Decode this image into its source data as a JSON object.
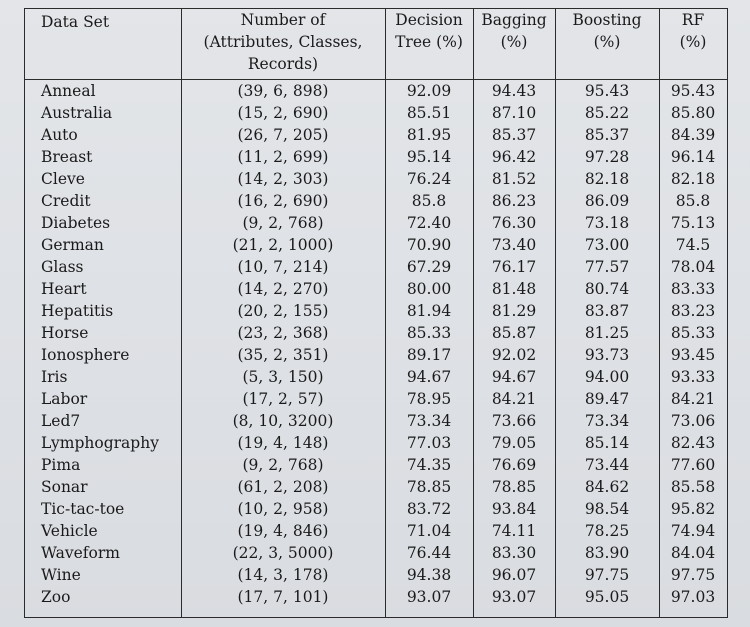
{
  "headers": {
    "dataset": "Data Set",
    "attributes_line1": "Number of",
    "attributes_line2": "(Attributes, Classes,",
    "attributes_line3": "Records)",
    "dt_line1": "Decision",
    "dt_line2": "Tree (%)",
    "bag_line1": "Bagging",
    "bag_line2": "(%)",
    "boost_line1": "Boosting",
    "boost_line2": "(%)",
    "rf_line1": "RF",
    "rf_line2": "(%)"
  },
  "rows": [
    {
      "name": "Anneal",
      "attr": "(39, 6, 898)",
      "dt": "92.09",
      "bag": "94.43",
      "boost": "95.43",
      "rf": "95.43"
    },
    {
      "name": "Australia",
      "attr": "(15, 2, 690)",
      "dt": "85.51",
      "bag": "87.10",
      "boost": "85.22",
      "rf": "85.80"
    },
    {
      "name": "Auto",
      "attr": "(26, 7, 205)",
      "dt": "81.95",
      "bag": "85.37",
      "boost": "85.37",
      "rf": "84.39"
    },
    {
      "name": "Breast",
      "attr": "(11, 2, 699)",
      "dt": "95.14",
      "bag": "96.42",
      "boost": "97.28",
      "rf": "96.14"
    },
    {
      "name": "Cleve",
      "attr": "(14, 2, 303)",
      "dt": "76.24",
      "bag": "81.52",
      "boost": "82.18",
      "rf": "82.18"
    },
    {
      "name": "Credit",
      "attr": "(16, 2, 690)",
      "dt": "85.8",
      "bag": "86.23",
      "boost": "86.09",
      "rf": "85.8"
    },
    {
      "name": "Diabetes",
      "attr": "(9, 2, 768)",
      "dt": "72.40",
      "bag": "76.30",
      "boost": "73.18",
      "rf": "75.13"
    },
    {
      "name": "German",
      "attr": "(21, 2, 1000)",
      "dt": "70.90",
      "bag": "73.40",
      "boost": "73.00",
      "rf": "74.5"
    },
    {
      "name": "Glass",
      "attr": "(10, 7, 214)",
      "dt": "67.29",
      "bag": "76.17",
      "boost": "77.57",
      "rf": "78.04"
    },
    {
      "name": "Heart",
      "attr": "(14, 2, 270)",
      "dt": "80.00",
      "bag": "81.48",
      "boost": "80.74",
      "rf": "83.33"
    },
    {
      "name": "Hepatitis",
      "attr": "(20, 2, 155)",
      "dt": "81.94",
      "bag": "81.29",
      "boost": "83.87",
      "rf": "83.23"
    },
    {
      "name": "Horse",
      "attr": "(23, 2, 368)",
      "dt": "85.33",
      "bag": "85.87",
      "boost": "81.25",
      "rf": "85.33"
    },
    {
      "name": "Ionosphere",
      "attr": "(35, 2, 351)",
      "dt": "89.17",
      "bag": "92.02",
      "boost": "93.73",
      "rf": "93.45"
    },
    {
      "name": "Iris",
      "attr": "(5, 3, 150)",
      "dt": "94.67",
      "bag": "94.67",
      "boost": "94.00",
      "rf": "93.33"
    },
    {
      "name": "Labor",
      "attr": "(17, 2, 57)",
      "dt": "78.95",
      "bag": "84.21",
      "boost": "89.47",
      "rf": "84.21"
    },
    {
      "name": "Led7",
      "attr": "(8, 10, 3200)",
      "dt": "73.34",
      "bag": "73.66",
      "boost": "73.34",
      "rf": "73.06"
    },
    {
      "name": "Lymphography",
      "attr": "(19, 4, 148)",
      "dt": "77.03",
      "bag": "79.05",
      "boost": "85.14",
      "rf": "82.43"
    },
    {
      "name": "Pima",
      "attr": "(9, 2, 768)",
      "dt": "74.35",
      "bag": "76.69",
      "boost": "73.44",
      "rf": "77.60"
    },
    {
      "name": "Sonar",
      "attr": "(61, 2, 208)",
      "dt": "78.85",
      "bag": "78.85",
      "boost": "84.62",
      "rf": "85.58"
    },
    {
      "name": "Tic-tac-toe",
      "attr": "(10, 2, 958)",
      "dt": "83.72",
      "bag": "93.84",
      "boost": "98.54",
      "rf": "95.82"
    },
    {
      "name": "Vehicle",
      "attr": "(19, 4, 846)",
      "dt": "71.04",
      "bag": "74.11",
      "boost": "78.25",
      "rf": "74.94"
    },
    {
      "name": "Waveform",
      "attr": "(22, 3, 5000)",
      "dt": "76.44",
      "bag": "83.30",
      "boost": "83.90",
      "rf": "84.04"
    },
    {
      "name": "Wine",
      "attr": "(14, 3, 178)",
      "dt": "94.38",
      "bag": "96.07",
      "boost": "97.75",
      "rf": "97.75"
    },
    {
      "name": "Zoo",
      "attr": "(17, 7, 101)",
      "dt": "93.07",
      "bag": "93.07",
      "boost": "95.05",
      "rf": "97.03"
    }
  ]
}
